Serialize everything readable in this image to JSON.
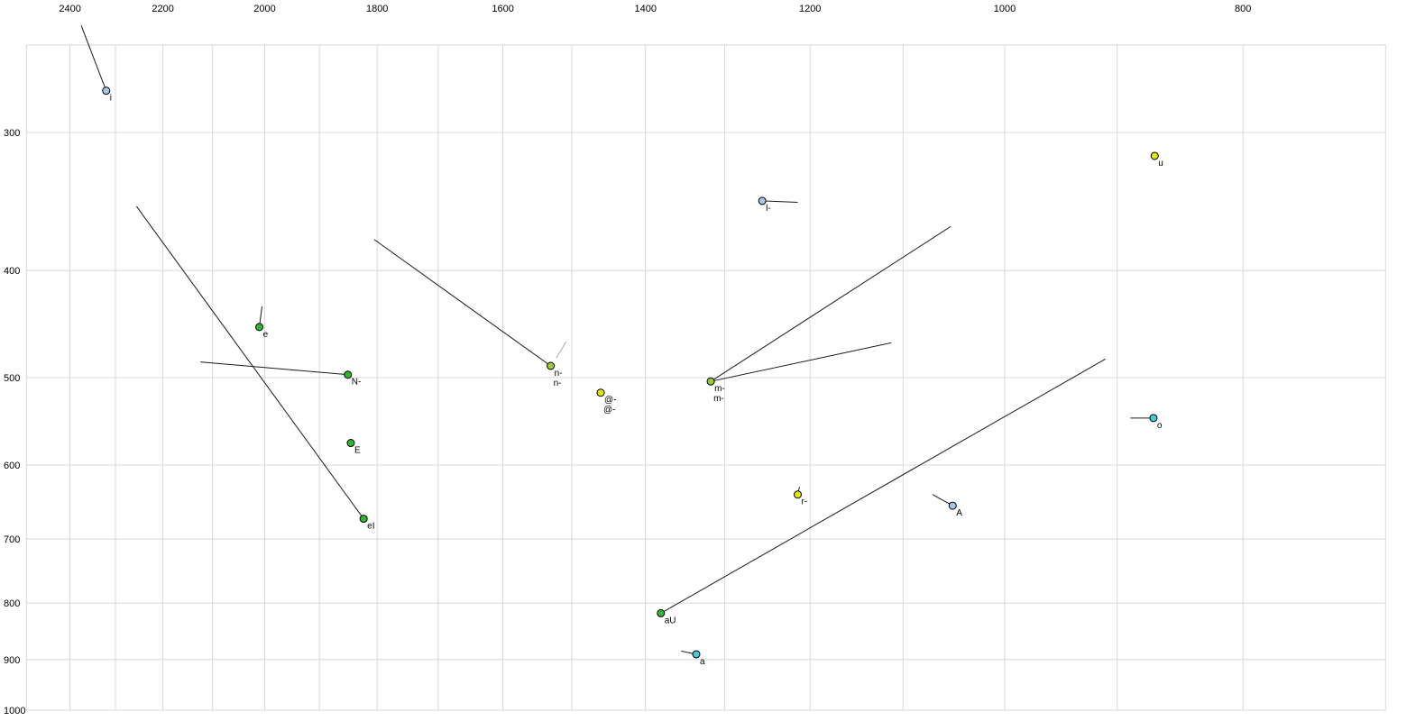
{
  "chart_data": {
    "type": "scatter",
    "title": "",
    "x_axis": {
      "scale": "log",
      "reversed": true,
      "range": [
        2500,
        700
      ],
      "ticks": [
        2400,
        2200,
        2000,
        1800,
        1600,
        1400,
        1200,
        1000,
        800
      ],
      "gridlines": [
        2500,
        2400,
        2300,
        2200,
        2100,
        2000,
        1900,
        1800,
        1700,
        1600,
        1500,
        1400,
        1300,
        1200,
        1100,
        1000,
        900,
        800,
        700
      ]
    },
    "y_axis": {
      "scale": "log",
      "reversed": false,
      "range": [
        250,
        1000
      ],
      "ticks": [
        300,
        400,
        500,
        600,
        700,
        800,
        900,
        1000
      ],
      "gridlines": [
        250,
        300,
        400,
        500,
        600,
        700,
        800,
        900,
        1000
      ]
    },
    "colors": {
      "grid": "#d8d8d8",
      "vector": "#1a1a1a",
      "ghost_label": "#999999",
      "green": "#2eb82e",
      "yellow": "#e6e600",
      "olive": "#9acd32",
      "cyan": "#45cdd6",
      "blue": "#a5c6e8"
    },
    "points": [
      {
        "label": "i",
        "f2": 2320,
        "f1": 275,
        "color": "blue",
        "vectors": [
          [
            2375,
            240
          ]
        ]
      },
      {
        "label": "u",
        "f2": 869,
        "f1": 315,
        "color": "yellow"
      },
      {
        "label": "l-",
        "f2": 1255,
        "f1": 346,
        "color": "blue",
        "vectors": [
          [
            1214,
            347
          ]
        ]
      },
      {
        "label": "e",
        "f2": 2010,
        "f1": 450,
        "color": "green",
        "vectors": [
          [
            2005,
            431
          ]
        ]
      },
      {
        "label": "N-",
        "f2": 1850,
        "f1": 497,
        "color": "green",
        "vectors": [
          [
            2124,
            484
          ]
        ]
      },
      {
        "label": "n-",
        "f2": 1530,
        "f1": 488,
        "color": "olive",
        "vectors": [
          [
            1805,
            375
          ]
        ],
        "double_label": true
      },
      {
        "label": "@-",
        "f2": 1460,
        "f1": 516,
        "color": "yellow",
        "double_label": true
      },
      {
        "label": "m-",
        "f2": 1317,
        "f1": 504,
        "color": "olive",
        "vectors": [
          [
            1052,
            365
          ],
          [
            1112,
            465
          ]
        ],
        "double_label": true
      },
      {
        "label": "o",
        "f2": 870,
        "f1": 544,
        "color": "cyan",
        "vectors": [
          [
            889,
            544
          ]
        ]
      },
      {
        "label": "E",
        "f2": 1845,
        "f1": 573,
        "color": "green"
      },
      {
        "label": "r-",
        "f2": 1214,
        "f1": 638,
        "color": "yellow",
        "vectors": [
          [
            1212,
            628
          ]
        ]
      },
      {
        "label": "A",
        "f2": 1050,
        "f1": 653,
        "color": "blue",
        "vectors": [
          [
            1070,
            638
          ]
        ]
      },
      {
        "label": "eI",
        "f2": 1823,
        "f1": 671,
        "color": "green",
        "vectors": [
          [
            2255,
            350
          ]
        ]
      },
      {
        "label": "aU",
        "f2": 1380,
        "f1": 817,
        "color": "green",
        "vectors": [
          [
            910,
            481
          ]
        ]
      },
      {
        "label": "a",
        "f2": 1335,
        "f1": 890,
        "color": "cyan",
        "vectors": [
          [
            1354,
            884
          ]
        ]
      }
    ],
    "extra_segments": [
      {
        "from": [
          1522,
          480
        ],
        "to": [
          1508,
          464
        ],
        "color": "#aaaaaa"
      }
    ]
  }
}
